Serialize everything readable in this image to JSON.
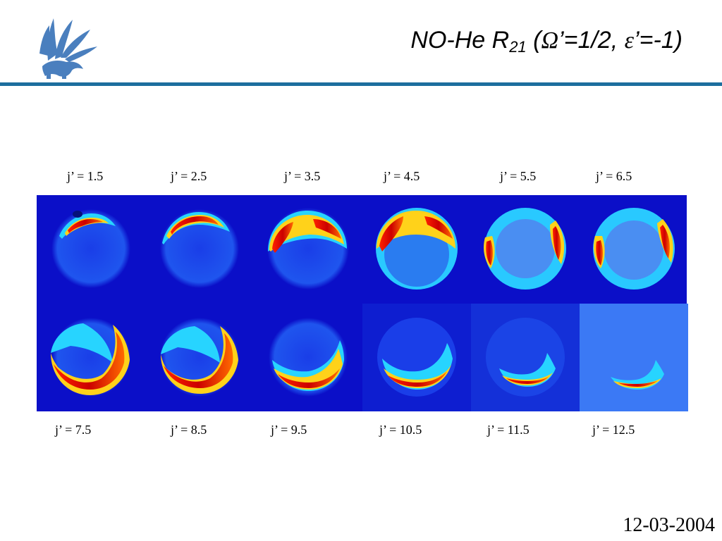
{
  "slide": {
    "title_main": "NO-He R",
    "title_sub": "21",
    "title_open": " (",
    "omega_symbol": "Ω",
    "title_mid": "’=1/2, ",
    "epsilon_symbol": "ε",
    "title_end": "’=-1)",
    "date": "12-03-2004"
  },
  "top_labels": [
    "j’ = 1.5",
    "j’ = 2.5",
    "j’ = 3.5",
    "j’ = 4.5",
    "j’ = 5.5",
    "j’ = 6.5"
  ],
  "bottom_labels": [
    "j’ = 7.5",
    "j’ = 8.5",
    "j’ = 9.5",
    "j’ = 10.5",
    "j’ = 11.5",
    "j’ = 12.5"
  ],
  "colors": {
    "rule": "#1c6e9e",
    "background_blue": "#0b0fc8",
    "logo_blue": "#4a7fbe"
  },
  "icons": {
    "logo": "griffin-emblem-icon"
  }
}
